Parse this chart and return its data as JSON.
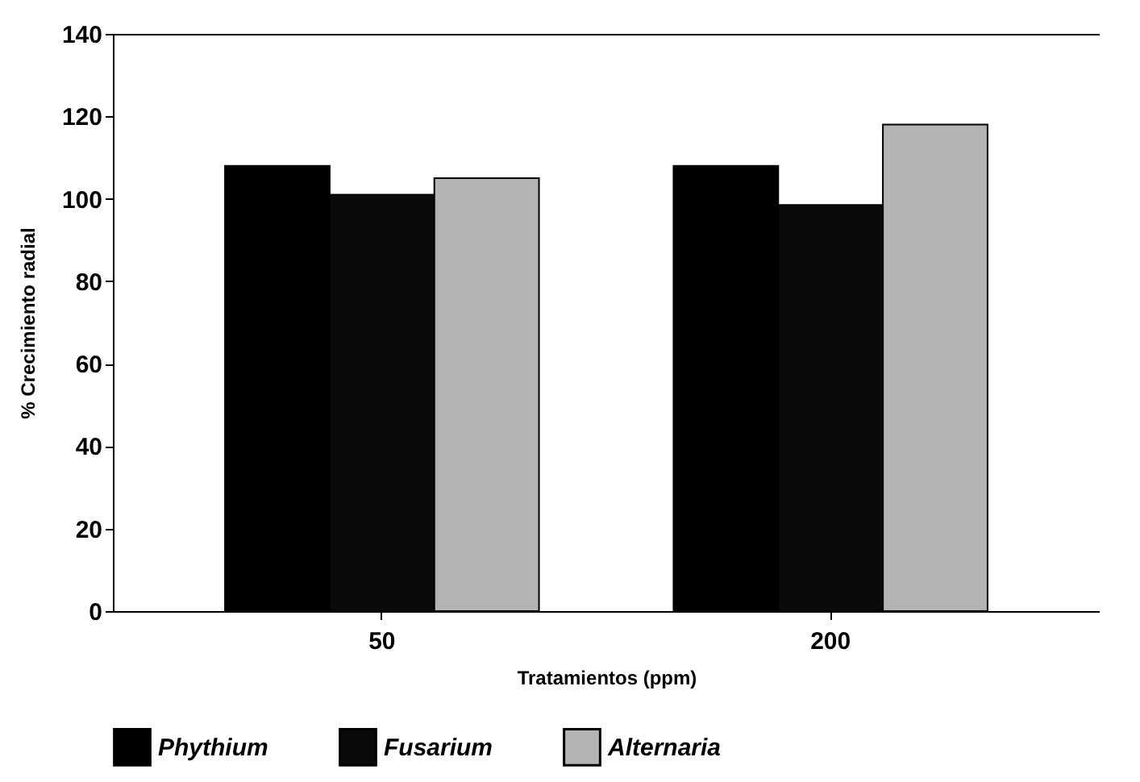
{
  "chart_data": {
    "type": "bar",
    "xlabel": "Tratamientos (ppm)",
    "ylabel": "% Crecimiento radial",
    "categories": [
      "50",
      "200"
    ],
    "series": [
      {
        "name": "Phythium",
        "color": "#000000",
        "values": [
          108,
          108
        ]
      },
      {
        "name": "Fusarium",
        "color": "#0a0a0a",
        "values": [
          101,
          98.5
        ]
      },
      {
        "name": "Alternaria",
        "color": "#b4b4b4",
        "values": [
          105,
          118
        ]
      }
    ],
    "ylim": [
      0,
      140
    ],
    "yticks": [
      0,
      20,
      40,
      60,
      80,
      100,
      120,
      140
    ],
    "grid": false,
    "legend": "bottom"
  }
}
